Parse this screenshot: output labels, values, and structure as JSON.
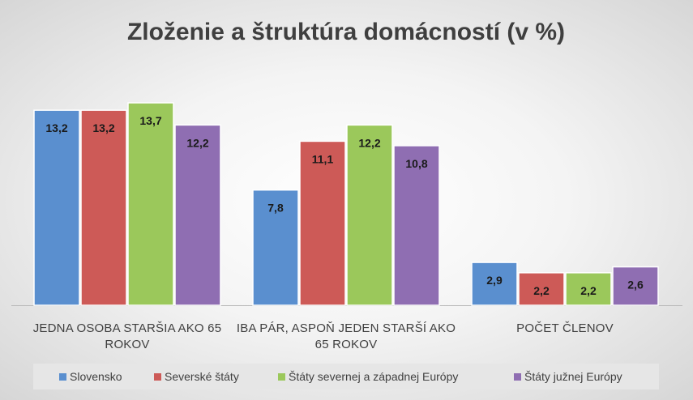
{
  "chart_data": {
    "type": "bar",
    "title": "Zloženie a štruktúra domácností (v %)",
    "categories": [
      [
        "JEDNA OSOBA STARŠIA AKO 65",
        "ROKOV"
      ],
      [
        "IBA PÁR, ASPOŇ JEDEN STARŠÍ AKO",
        "65 ROKOV"
      ],
      [
        "POČET ČLENOV"
      ]
    ],
    "series": [
      {
        "name": "Slovensko",
        "color": "#5a8fcf",
        "values": [
          13.2,
          7.8,
          2.9
        ],
        "labels": [
          "13,2",
          "7,8",
          "2,9"
        ]
      },
      {
        "name": "Severské štáty",
        "color": "#cd5a57",
        "values": [
          13.2,
          11.1,
          2.2
        ],
        "labels": [
          "13,2",
          "11,1",
          "2,2"
        ]
      },
      {
        "name": "Štáty severnej a západnej Európy",
        "color": "#9bc85b",
        "values": [
          13.7,
          12.2,
          2.2
        ],
        "labels": [
          "13,7",
          "12,2",
          "2,2"
        ]
      },
      {
        "name": "Štáty južnej Európy",
        "color": "#8f6eb2",
        "values": [
          12.2,
          10.8,
          2.6
        ],
        "labels": [
          "12,2",
          "10,8",
          "2,6"
        ]
      }
    ],
    "ylim": [
      0,
      13.7
    ],
    "gridlines": false,
    "legend_position": "bottom"
  }
}
